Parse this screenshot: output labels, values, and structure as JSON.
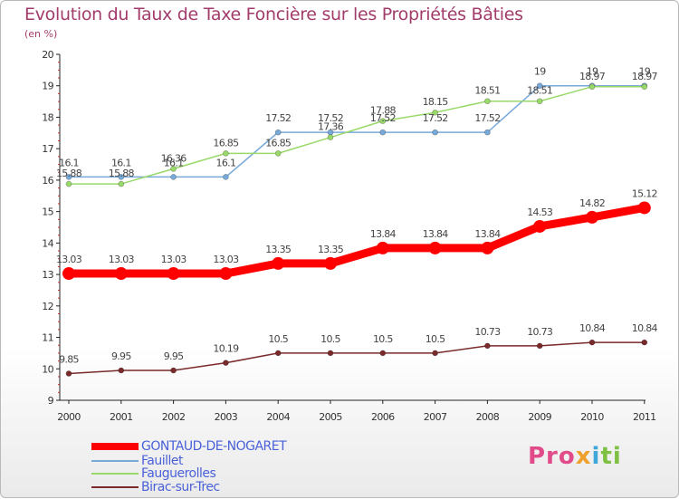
{
  "title": "Evolution du Taux de Taxe Foncière sur les Propriétés Bâties",
  "unit": "(en %)",
  "logo": {
    "text": [
      "Pro",
      "x",
      "i",
      "ti"
    ]
  },
  "chart_data": {
    "type": "line",
    "title": "Evolution du Taux de Taxe Foncière sur les Propriétés Bâties",
    "ylabel": "(en %)",
    "xlabel": "",
    "x": [
      "2000",
      "2001",
      "2002",
      "2003",
      "2004",
      "2005",
      "2006",
      "2007",
      "2008",
      "2009",
      "2010",
      "2011"
    ],
    "ylim": [
      9,
      20
    ],
    "yticks": [
      "9",
      "10",
      "11",
      "12",
      "13",
      "14",
      "15",
      "16",
      "17",
      "18",
      "19",
      "20"
    ],
    "grid": false,
    "legend": "bottom-left",
    "series": [
      {
        "name": "GONTAUD-DE-NOGARET",
        "color": "#ff0000",
        "values": [
          13.03,
          13.03,
          13.03,
          13.03,
          13.35,
          13.35,
          13.84,
          13.84,
          13.84,
          14.53,
          14.82,
          15.12
        ],
        "labels": [
          "13.03",
          "13.03",
          "13.03",
          "13.03",
          "13.35",
          "13.35",
          "13.84",
          "13.84",
          "13.84",
          "14.53",
          "14.82",
          "15.12"
        ]
      },
      {
        "name": "Fauillet",
        "color": "#77a9d9",
        "values": [
          16.1,
          16.1,
          16.1,
          16.1,
          17.52,
          17.52,
          17.52,
          17.52,
          17.52,
          19,
          19,
          19
        ],
        "labels": [
          "16.1",
          "16.1",
          "16.1",
          "16.1",
          "17.52",
          "17.52",
          "17.52",
          "17.52",
          "17.52",
          "19",
          "19",
          "19"
        ]
      },
      {
        "name": "Fauguerolles",
        "color": "#99d96a",
        "values": [
          15.88,
          15.88,
          16.36,
          16.85,
          16.85,
          17.36,
          17.88,
          18.15,
          18.51,
          18.51,
          18.97,
          18.97
        ],
        "labels": [
          "15.88",
          "15.88",
          "16.36",
          "16.85",
          "16.85",
          "17.36",
          "17.88",
          "18.15",
          "18.51",
          "18.51",
          "18.97",
          "18.97"
        ]
      },
      {
        "name": "Birac-sur-Trec",
        "color": "#7a2a2a",
        "values": [
          9.85,
          9.95,
          9.95,
          10.19,
          10.5,
          10.5,
          10.5,
          10.5,
          10.73,
          10.73,
          10.84,
          10.84
        ],
        "labels": [
          "9.85",
          "9.95",
          "9.95",
          "10.19",
          "10.5",
          "10.5",
          "10.5",
          "10.5",
          "10.73",
          "10.73",
          "10.84",
          "10.84"
        ]
      }
    ]
  }
}
